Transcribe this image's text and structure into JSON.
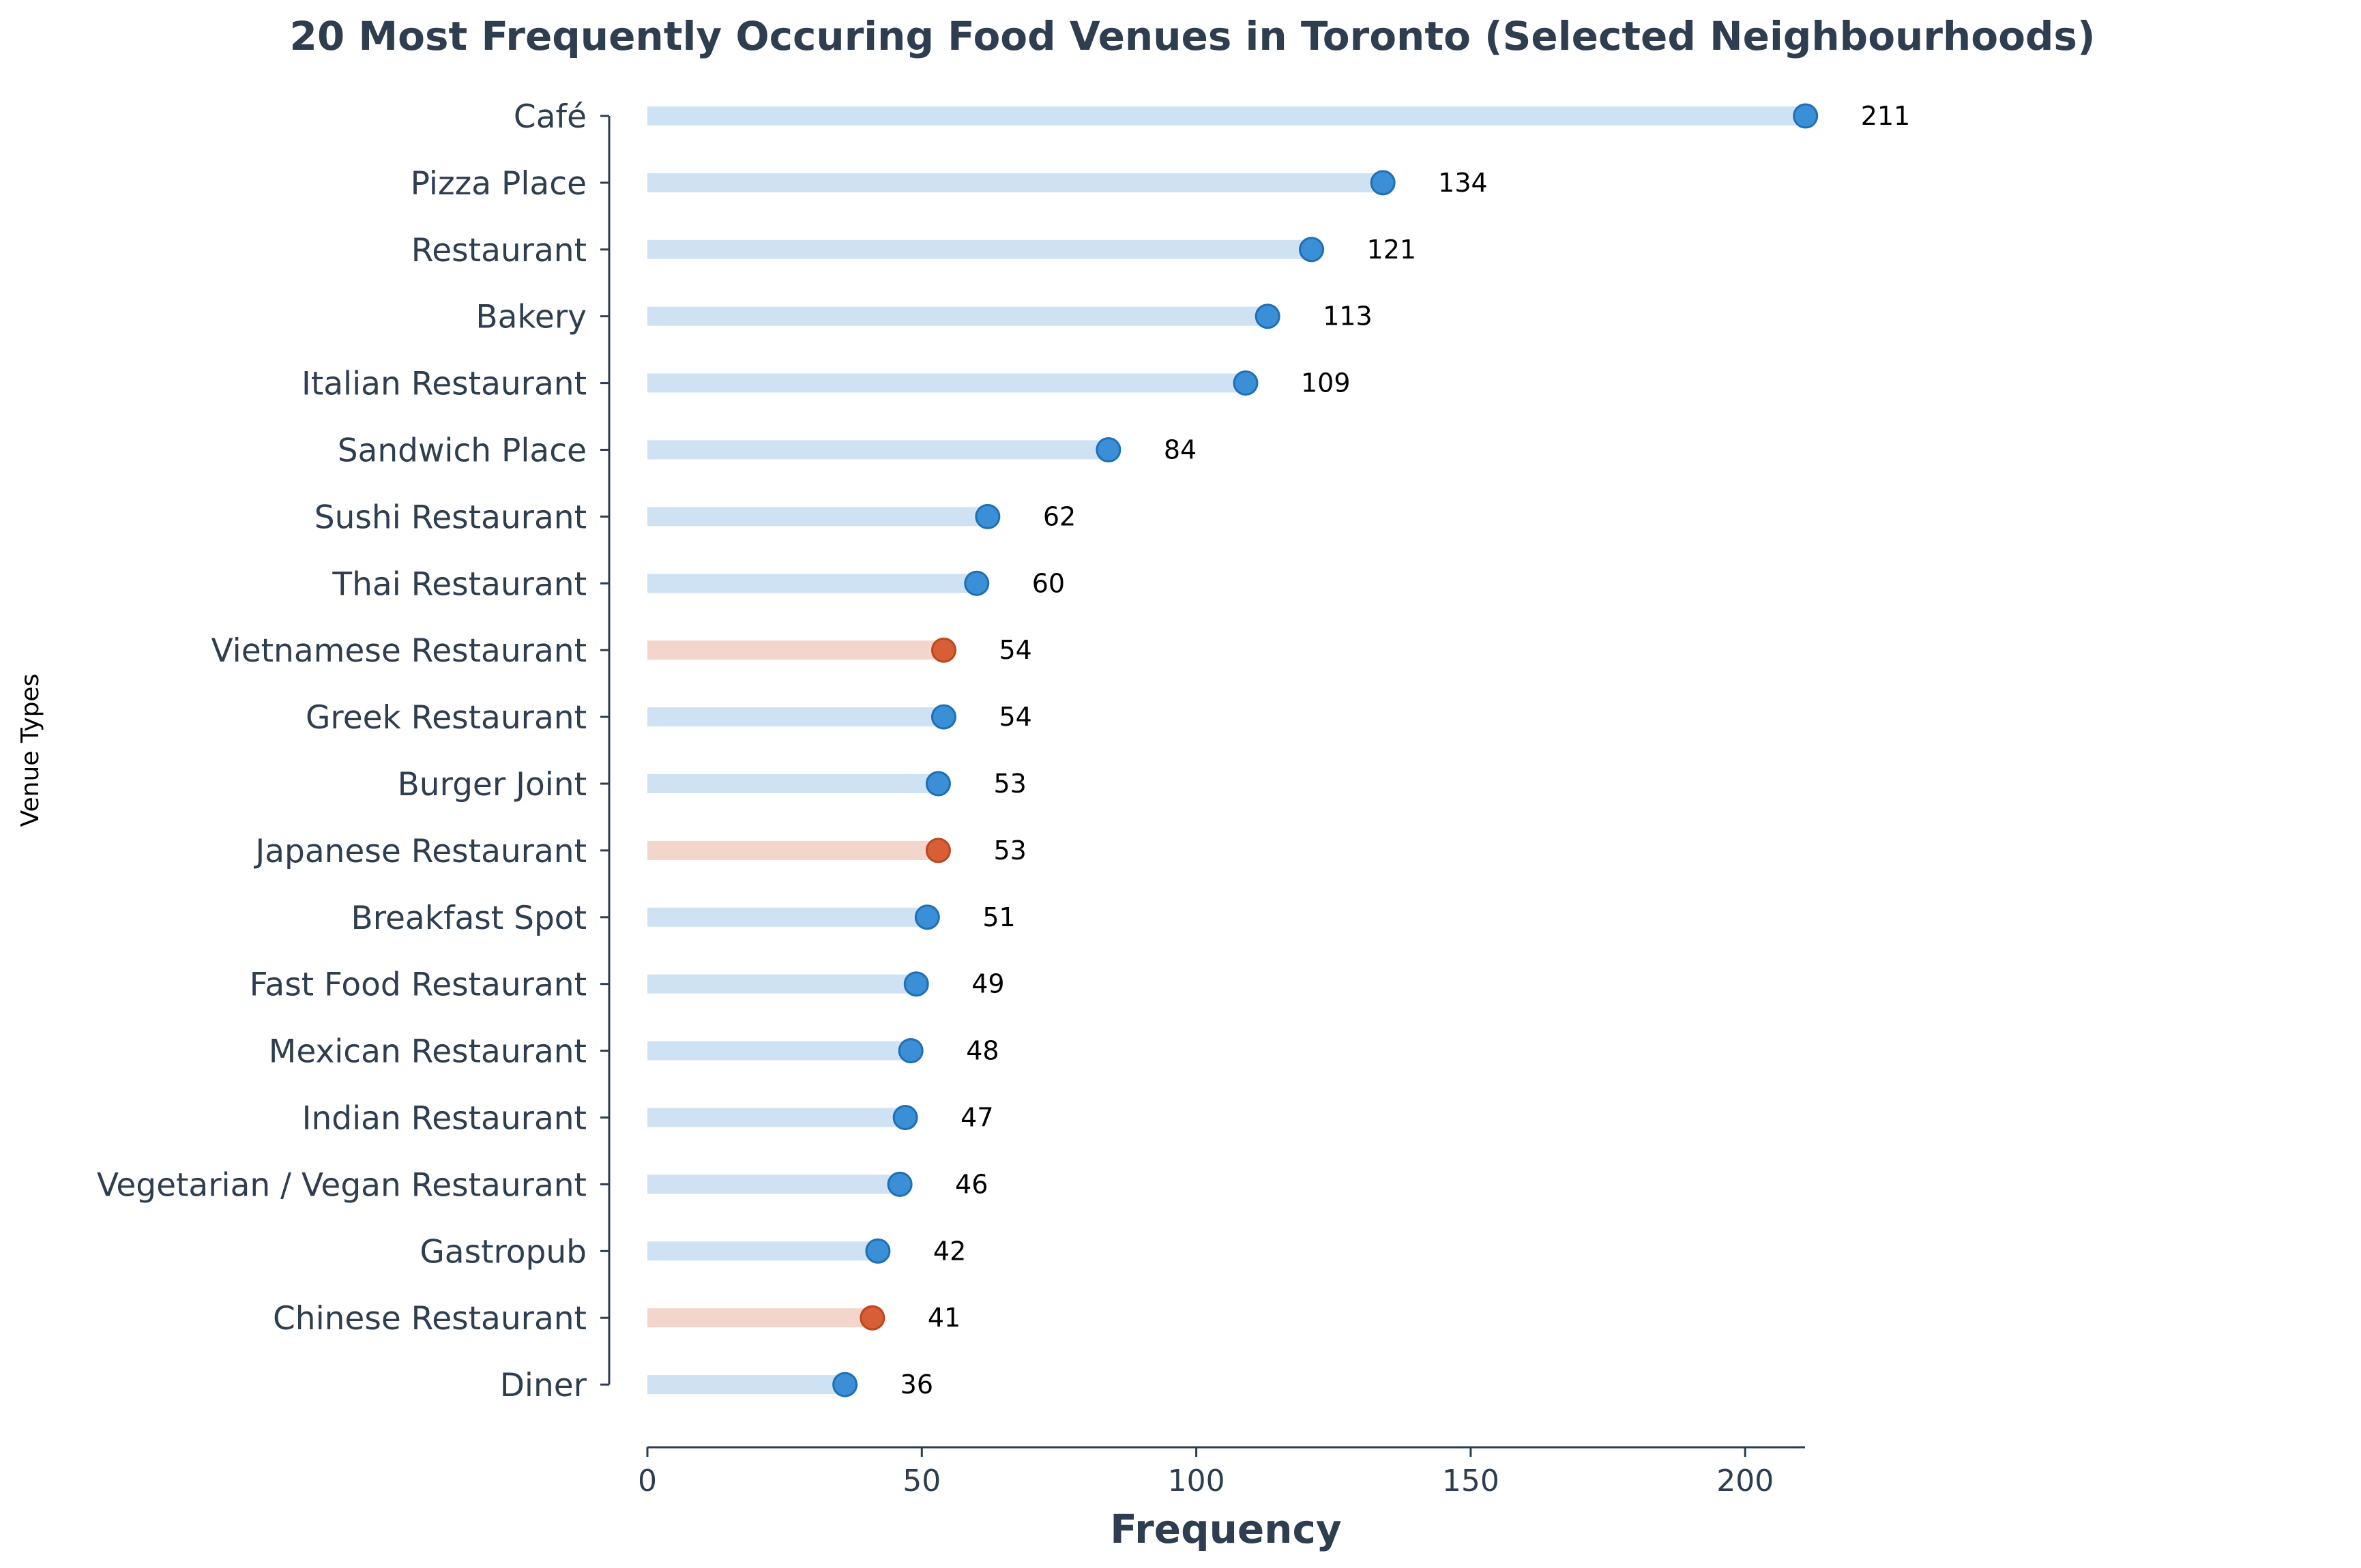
{
  "chart_data": {
    "type": "lollipop",
    "title": "20 Most Frequently Occuring Food Venues in Toronto (Selected Neighbourhoods)",
    "xlabel": "Frequency",
    "ylabel": "Venue Types",
    "xlim": [
      0,
      211
    ],
    "xticks": [
      0,
      50,
      100,
      150,
      200
    ],
    "grid": false,
    "colors": {
      "default_stem": "#cfe2f3",
      "default_dot": "#3a8fd6",
      "highlight_stem": "#f4d5cb",
      "highlight_dot": "#d85f35",
      "axis": "#2e3d4f"
    },
    "categories": [
      "Café",
      "Pizza Place",
      "Restaurant",
      "Bakery",
      "Italian Restaurant",
      "Sandwich Place",
      "Sushi Restaurant",
      "Thai Restaurant",
      "Vietnamese Restaurant",
      "Greek Restaurant",
      "Burger Joint",
      "Japanese Restaurant",
      "Breakfast Spot",
      "Fast Food Restaurant",
      "Mexican Restaurant",
      "Indian Restaurant",
      "Vegetarian / Vegan Restaurant",
      "Gastropub",
      "Chinese Restaurant",
      "Diner"
    ],
    "values": [
      211,
      134,
      121,
      113,
      109,
      84,
      62,
      60,
      54,
      54,
      53,
      53,
      51,
      49,
      48,
      47,
      46,
      42,
      41,
      36
    ],
    "value_labels": [
      "211",
      "134",
      "121",
      "113",
      "109",
      "84",
      "62",
      "60",
      "54",
      "54",
      "53",
      "53",
      "51",
      "49",
      "48",
      "47",
      "46",
      "42",
      "41",
      "36"
    ],
    "highlighted": [
      false,
      false,
      false,
      false,
      false,
      false,
      false,
      false,
      true,
      false,
      false,
      true,
      false,
      false,
      false,
      false,
      false,
      false,
      true,
      false
    ]
  }
}
